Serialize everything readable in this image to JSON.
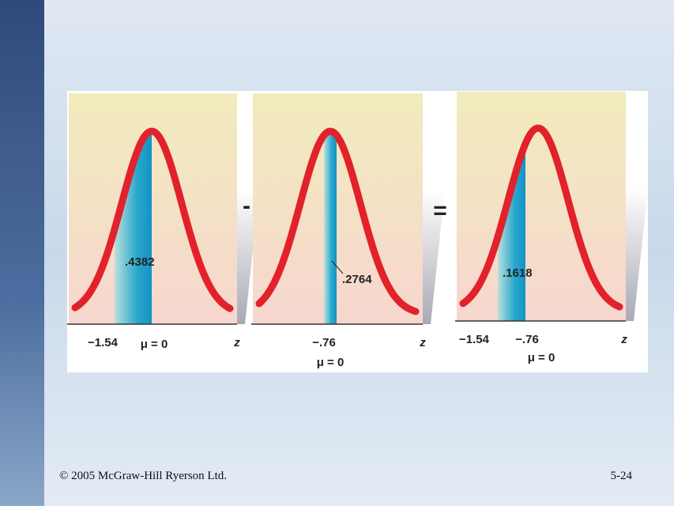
{
  "panels": [
    {
      "area_label": ".4382",
      "axis_labels": [
        "−1.54",
        "μ = 0",
        "z"
      ]
    },
    {
      "area_label": ".2764",
      "axis_labels": [
        "−.76",
        "μ = 0",
        "z"
      ]
    },
    {
      "area_label": ".1618",
      "axis_labels": [
        "−1.54",
        "−.76",
        "μ = 0",
        "z"
      ]
    }
  ],
  "operators": [
    "-",
    "="
  ],
  "footer": {
    "copyright": "© 2005 McGraw-Hill Ryerson Ltd.",
    "slide_number": "5-24"
  }
}
